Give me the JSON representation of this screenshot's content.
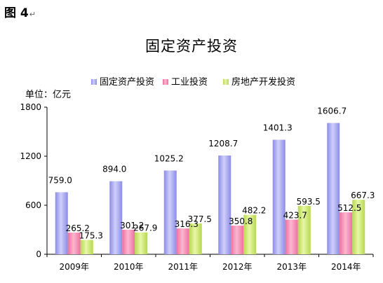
{
  "figure_label": "图 4",
  "figure_mark": "↵",
  "chart_data": {
    "type": "bar",
    "title": "固定资产投资",
    "unit_label": "单位：亿元",
    "categories": [
      "2009年",
      "2010年",
      "2011年",
      "2012年",
      "2013年",
      "2014年"
    ],
    "series": [
      {
        "name": "固定资产投资",
        "color": "#a9a9f2",
        "values": [
          759.0,
          894.0,
          1025.2,
          1208.7,
          1401.3,
          1606.7
        ]
      },
      {
        "name": "工业投资",
        "color": "#f590b4",
        "values": [
          265.2,
          301.2,
          316.3,
          350.8,
          423.7,
          512.5
        ]
      },
      {
        "name": "房地产开发投资",
        "color": "#cde878",
        "values": [
          175.3,
          267.9,
          377.5,
          482.2,
          593.5,
          667.3
        ]
      }
    ],
    "value_labels": [
      [
        "759.0",
        "894.0",
        "1025.2",
        "1208.7",
        "1401.3",
        "1606.7"
      ],
      [
        "265.2",
        "301.2",
        "316.3",
        "350.8",
        "423.7",
        "512.5"
      ],
      [
        "175.3",
        "267.9",
        "377.5",
        "482.2",
        "593.5",
        "667.3"
      ]
    ],
    "yticks": [
      0,
      600,
      1200,
      1800
    ],
    "ylim": [
      0,
      1800
    ],
    "grid": false,
    "legend_position": "top"
  }
}
